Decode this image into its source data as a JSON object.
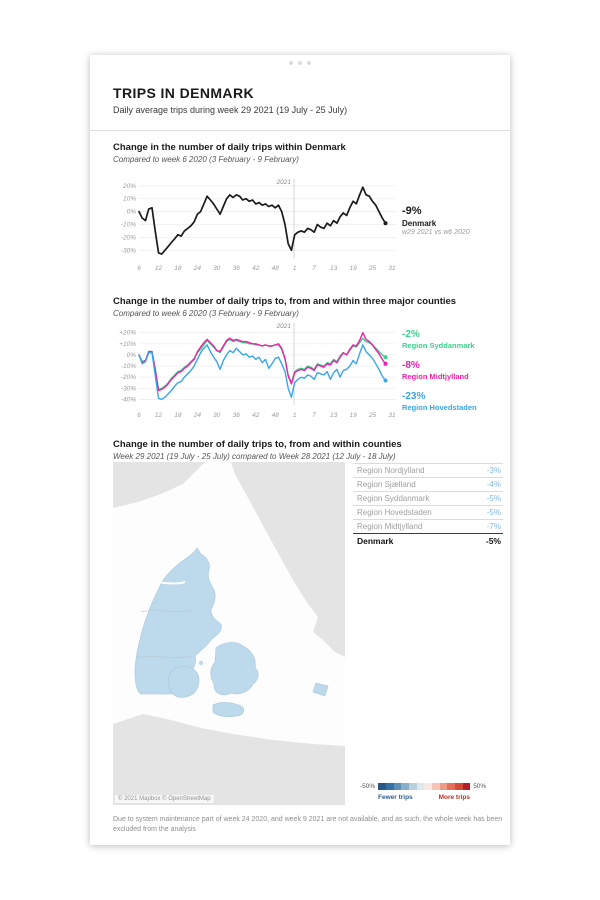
{
  "header": {
    "title": "TRIPS IN DENMARK",
    "subtitle": "Daily average trips during week 29 2021 (19 July - 25 July)"
  },
  "sections": {
    "within_denmark": {
      "title": "Change in the number of daily trips within Denmark",
      "subtitle": "Compared to week 6 2020 (3 February - 9 February)"
    },
    "three_counties": {
      "title": "Change in the number of daily trips to, from and within three major counties",
      "subtitle": "Compared to week 6 2020 (3 February - 9 February)"
    },
    "counties": {
      "title": "Change in the number of daily trips to, from and within counties",
      "subtitle": "Week 29 2021 (19 July - 25 July) compared to Week 28 2021 (12 July - 18 July)"
    }
  },
  "chart1_annotation": {
    "value": "-9%",
    "label": "Denmark",
    "sub": "w29 2021 vs w6 2020"
  },
  "chart2_annotations": [
    {
      "value": "-2%",
      "label": "Region Syddanmark",
      "color": "#3bd08c"
    },
    {
      "value": "-8%",
      "label": "Region Midtjylland",
      "color": "#ee1fa8"
    },
    {
      "value": "-23%",
      "label": "Region Hovedstaden",
      "color": "#38a6ea"
    }
  ],
  "table": {
    "rows": [
      {
        "label": "Region Nordjylland",
        "value": "-3%"
      },
      {
        "label": "Region Sjælland",
        "value": "-4%"
      },
      {
        "label": "Region Syddanmark",
        "value": "-5%"
      },
      {
        "label": "Region Hovedstaden",
        "value": "-5%"
      },
      {
        "label": "Region Midtjylland",
        "value": "-7%"
      }
    ],
    "total": {
      "label": "Denmark",
      "value": "-5%"
    }
  },
  "map": {
    "attribution": "© 2021 Mapbox © OpenStreetMap",
    "region_fill": "#bdd9ec",
    "land_fill": "#e4e4e4",
    "sea_fill": "#fdfdfd",
    "legend": {
      "min_label": "-50%",
      "max_label": "50%",
      "fewer_label": "Fewer trips",
      "more_label": "More trips",
      "colors": [
        "#2a5783",
        "#3570a6",
        "#5b8fb8",
        "#88aec9",
        "#b8cfdd",
        "#dce7ee",
        "#f7e8e4",
        "#f5c5b8",
        "#ee9a86",
        "#e4705a",
        "#d44a38",
        "#b51f27"
      ]
    }
  },
  "footnote": "Due to system maintenance part of week 24 2020, and week 9 2021 are not available, and as such, the whole week has been excluded from the analysis",
  "chart_data": [
    {
      "type": "line",
      "title": "Change in the number of daily trips within Denmark",
      "slot_count": 79,
      "divider_slot": 47.8,
      "divider_label": "2021",
      "x_ticks": [
        {
          "label": "6",
          "slot": 0
        },
        {
          "label": "12",
          "slot": 6
        },
        {
          "label": "18",
          "slot": 12
        },
        {
          "label": "24",
          "slot": 18
        },
        {
          "label": "30",
          "slot": 24
        },
        {
          "label": "36",
          "slot": 30
        },
        {
          "label": "42",
          "slot": 36
        },
        {
          "label": "48",
          "slot": 42
        },
        {
          "label": "1",
          "slot": 48
        },
        {
          "label": "7",
          "slot": 54
        },
        {
          "label": "13",
          "slot": 60
        },
        {
          "label": "19",
          "slot": 66
        },
        {
          "label": "25",
          "slot": 72
        },
        {
          "label": "31",
          "slot": 78
        }
      ],
      "ylim": [
        -36,
        23
      ],
      "y_ticks": [
        {
          "label": "20%",
          "value": 20
        },
        {
          "label": "10%",
          "value": 10
        },
        {
          "label": "0%",
          "value": 0
        },
        {
          "label": "-10%",
          "value": -10
        },
        {
          "label": "-20%",
          "value": -20
        },
        {
          "label": "-30%",
          "value": -30
        }
      ],
      "series": [
        {
          "name": "Denmark",
          "color": "#1b1b1b",
          "width": 1.7,
          "values": [
            0,
            -5,
            -7,
            2,
            3,
            -15,
            -32,
            -33,
            -30,
            -27,
            -24,
            -21,
            -18,
            -19,
            -15,
            -13,
            -11,
            -8,
            -2,
            0,
            6,
            12,
            9,
            6,
            2,
            -2,
            4,
            10,
            13,
            11,
            13,
            12,
            9,
            10,
            8,
            9,
            6,
            7,
            5,
            6,
            4,
            5,
            3,
            5,
            0,
            -10,
            -25,
            -30,
            -18,
            -16,
            -15,
            -16,
            -13,
            -14,
            -16,
            -10,
            -12,
            -13,
            -9,
            -11,
            -7,
            -9,
            -4,
            -1,
            -3,
            3,
            8,
            6,
            13,
            19,
            13,
            12,
            8,
            5,
            0,
            -5,
            -9
          ]
        }
      ]
    },
    {
      "type": "line",
      "title": "Change in the number of daily trips to, from and within three major counties",
      "slot_count": 79,
      "divider_slot": 47.8,
      "divider_label": "2021",
      "x_ticks": [
        {
          "label": "6",
          "slot": 0
        },
        {
          "label": "12",
          "slot": 6
        },
        {
          "label": "18",
          "slot": 12
        },
        {
          "label": "24",
          "slot": 18
        },
        {
          "label": "30",
          "slot": 24
        },
        {
          "label": "36",
          "slot": 30
        },
        {
          "label": "42",
          "slot": 36
        },
        {
          "label": "48",
          "slot": 42
        },
        {
          "label": "1",
          "slot": 48
        },
        {
          "label": "7",
          "slot": 54
        },
        {
          "label": "13",
          "slot": 60
        },
        {
          "label": "19",
          "slot": 66
        },
        {
          "label": "25",
          "slot": 72
        },
        {
          "label": "31",
          "slot": 78
        }
      ],
      "ylim": [
        -45,
        26
      ],
      "y_ticks": [
        {
          "label": "+20%",
          "value": 20
        },
        {
          "label": "+10%",
          "value": 10
        },
        {
          "label": "0%",
          "value": 0
        },
        {
          "label": "-10%",
          "value": -10
        },
        {
          "label": "-20%",
          "value": -20
        },
        {
          "label": "-30%",
          "value": -30
        },
        {
          "label": "-40%",
          "value": -40
        }
      ],
      "series": [
        {
          "name": "Region Syddanmark",
          "color": "#3bd08c",
          "width": 1.4,
          "values": [
            0,
            -6,
            -5,
            3,
            3,
            -12,
            -31,
            -30,
            -28,
            -25,
            -21,
            -18,
            -15,
            -14,
            -11,
            -9,
            -6,
            -3,
            2,
            5,
            9,
            13,
            10,
            7,
            4,
            2,
            7,
            12,
            14,
            12,
            13,
            12,
            11,
            11,
            10,
            10,
            9,
            9,
            8,
            9,
            8,
            8,
            9,
            9,
            5,
            -4,
            -18,
            -25,
            -15,
            -13,
            -12,
            -13,
            -10,
            -11,
            -13,
            -8,
            -9,
            -10,
            -7,
            -8,
            -4,
            -6,
            -1,
            2,
            0,
            4,
            8,
            7,
            11,
            15,
            12,
            11,
            9,
            6,
            3,
            0,
            -2
          ]
        },
        {
          "name": "Region Midtjylland",
          "color": "#ee1fa8",
          "width": 1.4,
          "values": [
            0,
            -7,
            -5,
            3,
            3,
            -13,
            -32,
            -31,
            -29,
            -26,
            -22,
            -19,
            -16,
            -15,
            -12,
            -10,
            -7,
            -4,
            3,
            7,
            11,
            14,
            11,
            8,
            4,
            3,
            8,
            13,
            15,
            13,
            14,
            13,
            12,
            12,
            11,
            10,
            10,
            9,
            8,
            9,
            8,
            8,
            9,
            10,
            6,
            -3,
            -19,
            -26,
            -16,
            -14,
            -13,
            -14,
            -11,
            -12,
            -14,
            -9,
            -10,
            -11,
            -8,
            -9,
            -5,
            -7,
            -2,
            2,
            0,
            5,
            9,
            8,
            13,
            20,
            14,
            12,
            9,
            5,
            1,
            -4,
            -8
          ]
        },
        {
          "name": "Region Hovedstaden",
          "color": "#38a6ea",
          "width": 1.4,
          "values": [
            0,
            -8,
            -6,
            2,
            2,
            -18,
            -39,
            -40,
            -38,
            -35,
            -32,
            -28,
            -25,
            -24,
            -20,
            -17,
            -14,
            -10,
            -4,
            2,
            6,
            9,
            3,
            -2,
            -6,
            -13,
            -5,
            0,
            4,
            2,
            6,
            3,
            0,
            1,
            -2,
            -1,
            -4,
            -2,
            -7,
            -4,
            -12,
            -8,
            -3,
            -2,
            -8,
            -15,
            -30,
            -38,
            -25,
            -22,
            -20,
            -21,
            -18,
            -19,
            -22,
            -16,
            -17,
            -18,
            -15,
            -22,
            -16,
            -13,
            -20,
            -14,
            -13,
            -10,
            -5,
            -8,
            1,
            9,
            3,
            0,
            -3,
            -8,
            -13,
            -19,
            -23
          ]
        }
      ]
    }
  ]
}
